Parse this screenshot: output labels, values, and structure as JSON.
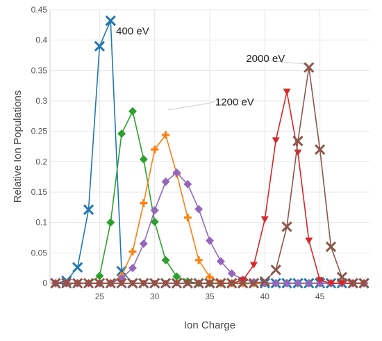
{
  "chart_data": {
    "type": "line",
    "title": "",
    "xlabel": "Ion Charge",
    "ylabel": "Relative Ion Populations",
    "xlim": [
      20.5,
      49.5
    ],
    "ylim": [
      0,
      0.45
    ],
    "xticks": [
      25,
      30,
      35,
      40,
      45
    ],
    "yticks": [
      0,
      0.05,
      0.1,
      0.15,
      0.2,
      0.25,
      0.3,
      0.35,
      0.4,
      0.45
    ],
    "grid": true,
    "series": [
      {
        "color": "#1f77b4",
        "marker": "x",
        "x": [
          21,
          22,
          23,
          24,
          25,
          26,
          27,
          28,
          29,
          30,
          31,
          32,
          33,
          34,
          35,
          36,
          37,
          38,
          39,
          40,
          41,
          42,
          43,
          44,
          45,
          46,
          47,
          48,
          49
        ],
        "y": [
          0.0,
          0.004,
          0.026,
          0.121,
          0.39,
          0.432,
          0.02,
          0.0,
          0.0,
          0.0,
          0.0,
          0.0,
          0.0,
          0.0,
          0.0,
          0.0,
          0.0,
          0.0,
          0.0,
          0.0,
          0.0,
          0.0,
          0.0,
          0.0,
          0.0,
          0.0,
          0.0,
          0.0,
          0.0
        ]
      },
      {
        "color": "#2ca02c",
        "marker": "diamond",
        "x": [
          21,
          22,
          23,
          24,
          25,
          26,
          27,
          28,
          29,
          30,
          31,
          32,
          33,
          34,
          35,
          36,
          37,
          38,
          39,
          40,
          41,
          42,
          43,
          44,
          45,
          46,
          47,
          48,
          49
        ],
        "y": [
          0.0,
          0.0,
          0.0,
          0.0,
          0.012,
          0.1,
          0.246,
          0.283,
          0.204,
          0.101,
          0.038,
          0.011,
          0.003,
          0.0,
          0.0,
          0.0,
          0.0,
          0.0,
          0.0,
          0.0,
          0.0,
          0.0,
          0.0,
          0.0,
          0.0,
          0.0,
          0.0,
          0.0,
          0.0
        ]
      },
      {
        "color": "#ff7f0e",
        "marker": "plus",
        "x": [
          21,
          22,
          23,
          24,
          25,
          26,
          27,
          28,
          29,
          30,
          31,
          32,
          33,
          34,
          35,
          36,
          37,
          38,
          39,
          40,
          41,
          42,
          43,
          44,
          45,
          46,
          47,
          48,
          49
        ],
        "y": [
          0.0,
          0.0,
          0.0,
          0.0,
          0.0,
          0.0,
          0.012,
          0.052,
          0.132,
          0.22,
          0.244,
          0.18,
          0.108,
          0.038,
          0.01,
          0.0,
          0.0,
          0.0,
          0.0,
          0.0,
          0.0,
          0.0,
          0.0,
          0.0,
          0.0,
          0.0,
          0.0,
          0.0,
          0.0
        ]
      },
      {
        "color": "#9467bd",
        "marker": "diamond",
        "x": [
          21,
          22,
          23,
          24,
          25,
          26,
          27,
          28,
          29,
          30,
          31,
          32,
          33,
          34,
          35,
          36,
          37,
          38,
          39,
          40,
          41,
          42,
          43,
          44,
          45,
          46,
          47,
          48,
          49
        ],
        "y": [
          0.0,
          0.0,
          0.0,
          0.0,
          0.0,
          0.0,
          0.008,
          0.025,
          0.065,
          0.12,
          0.167,
          0.182,
          0.163,
          0.122,
          0.07,
          0.036,
          0.016,
          0.006,
          0.002,
          0.0,
          0.0,
          0.0,
          0.0,
          0.0,
          0.0,
          0.0,
          0.0,
          0.0,
          0.0
        ]
      },
      {
        "color": "#d62728",
        "marker": "triangle-down",
        "x": [
          21,
          22,
          23,
          24,
          25,
          26,
          27,
          28,
          29,
          30,
          31,
          32,
          33,
          34,
          35,
          36,
          37,
          38,
          39,
          40,
          41,
          42,
          43,
          44,
          45,
          46,
          47,
          48,
          49
        ],
        "y": [
          0.0,
          0.0,
          0.0,
          0.0,
          0.0,
          0.0,
          0.0,
          0.0,
          0.0,
          0.0,
          0.0,
          0.0,
          0.0,
          0.0,
          0.0,
          0.0,
          0.0,
          0.005,
          0.03,
          0.105,
          0.235,
          0.315,
          0.215,
          0.07,
          0.005,
          0.0,
          0.0,
          0.0,
          0.0
        ]
      },
      {
        "color": "#8c564b",
        "marker": "x",
        "x": [
          21,
          22,
          23,
          24,
          25,
          26,
          27,
          28,
          29,
          30,
          31,
          32,
          33,
          34,
          35,
          36,
          37,
          38,
          39,
          40,
          41,
          42,
          43,
          44,
          45,
          46,
          47,
          48,
          49
        ],
        "y": [
          0.0,
          0.0,
          0.0,
          0.0,
          0.0,
          0.0,
          0.0,
          0.0,
          0.0,
          0.0,
          0.0,
          0.0,
          0.0,
          0.0,
          0.0,
          0.0,
          0.0,
          0.0,
          0.0,
          0.003,
          0.022,
          0.093,
          0.234,
          0.355,
          0.22,
          0.06,
          0.01,
          0.0,
          0.0
        ]
      }
    ],
    "annotations": [
      {
        "text": "400 eV",
        "x": 26.5,
        "y": 0.415,
        "target_x": 26.2,
        "target_y": 0.415
      },
      {
        "text": "2000 eV",
        "x": 38.3,
        "y": 0.37,
        "target_x": 44.0,
        "target_y": 0.36
      },
      {
        "text": "1200 eV",
        "x": 35.5,
        "y": 0.298,
        "target_x": 31.2,
        "target_y": 0.285
      }
    ]
  }
}
